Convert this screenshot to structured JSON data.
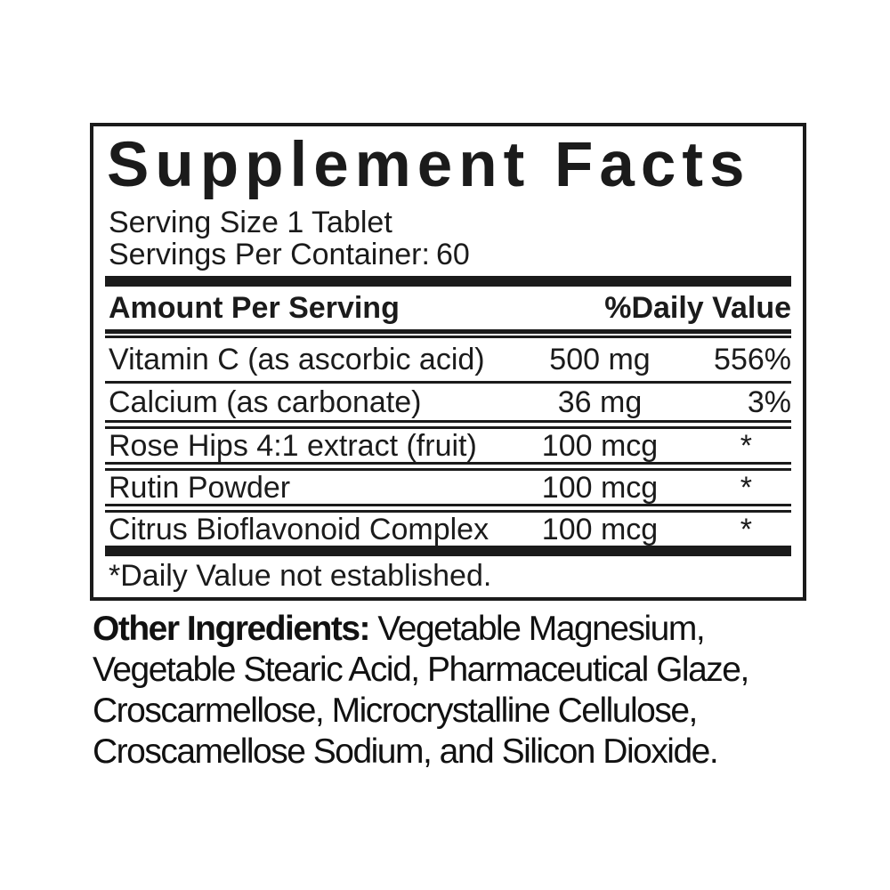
{
  "panel": {
    "title": "Supplement Facts",
    "serving_size": "Serving Size 1 Tablet",
    "servings_per_container_label": "Servings Per Container:",
    "servings_per_container_value": "60",
    "table": {
      "header": {
        "amount": "Amount Per Serving",
        "daily_value": "%Daily Value"
      },
      "rows": [
        {
          "name": "Vitamin C (as ascorbic acid)",
          "amount": "500 mg",
          "daily_value": "556%"
        },
        {
          "name": "Calcium (as carbonate)",
          "amount": "36 mg",
          "daily_value": "3%"
        },
        {
          "name": "Rose Hips 4:1 extract (fruit)",
          "amount": "100 mcg",
          "daily_value": "*"
        },
        {
          "name": "Rutin Powder",
          "amount": "100 mcg",
          "daily_value": "*"
        },
        {
          "name": "Citrus Bioflavonoid Complex",
          "amount": "100 mcg",
          "daily_value": "*"
        }
      ]
    },
    "footnote": "*Daily Value not established."
  },
  "other_ingredients": {
    "lead": "Other Ingredients:",
    "lines": [
      "Vegetable Magnesium,",
      "Vegetable Stearic Acid, Pharmaceutical Glaze,",
      "Croscarmellose, Microcrystalline Cellulose,",
      "Croscamellose Sodium, and Silicon Dioxide."
    ],
    "full_text": "Other Ingredients: Vegetable Magnesium, Vegetable Stearic Acid, Pharmaceutical Glaze, Croscarmellose, Microcrystalline Cellulose, Croscamellose Sodium, and Silicon Dioxide."
  },
  "colors": {
    "ink": "#1b1b1b",
    "background": "#ffffff"
  }
}
